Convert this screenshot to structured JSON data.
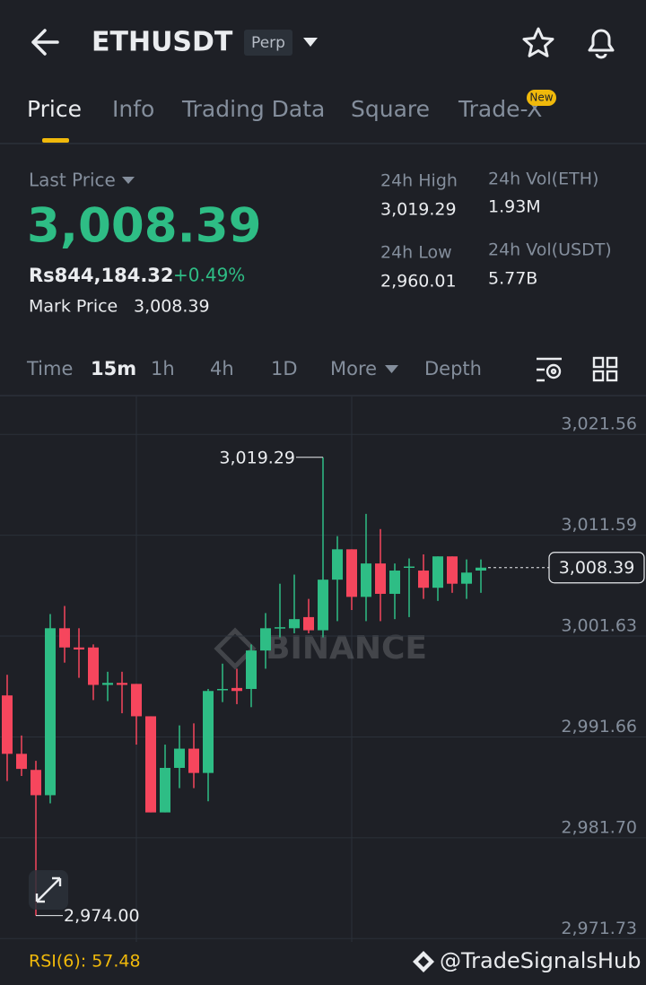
{
  "header": {
    "symbol": "ETHUSDT",
    "contract": "Perp"
  },
  "tabs": {
    "items": [
      "Price",
      "Info",
      "Trading Data",
      "Square",
      "Trade-X"
    ],
    "badge": "New"
  },
  "stats": {
    "last_price_label": "Last Price",
    "last_price": "3,008.39",
    "fiat_price": "Rs844,184.32",
    "change": "+0.49%",
    "mark_price_label": "Mark Price",
    "mark_price": "3,008.39",
    "high_label": "24h High",
    "high": "3,019.29",
    "low_label": "24h Low",
    "low": "2,960.01",
    "vol_eth_label": "24h Vol(ETH)",
    "vol_eth": "1.93M",
    "vol_usdt_label": "24h Vol(USDT)",
    "vol_usdt": "5.77B"
  },
  "intervals": [
    "Time",
    "15m",
    "1h",
    "4h",
    "1D",
    "More",
    "Depth"
  ],
  "chart_data": {
    "type": "candlestick",
    "open": [
      2995.76,
      2989.99,
      2988.4,
      2985.9,
      3002.4,
      3000.5,
      3000.5,
      2996.8,
      2997.0,
      2996.9,
      2993.7,
      2984.2,
      2988.6,
      2990.5,
      2988.1,
      2996.3,
      2996.5,
      2996.4,
      3000.2,
      3002.4,
      3002.4,
      3003.5,
      3002.2,
      3007.2,
      3010.2,
      3005.5,
      3008.8,
      3005.8,
      3008.4,
      3008.1,
      3006.4,
      3009.5,
      3006.8,
      3008.1
    ],
    "high": [
      2997.8,
      2991.8,
      2989.3,
      3003.8,
      3004.6,
      3002.4,
      3000.8,
      2998.1,
      2998.1,
      2996.9,
      2993.7,
      2990.9,
      2992.8,
      2993.0,
      2996.4,
      2998.9,
      2998.4,
      3000.8,
      3003.9,
      3006.8,
      3007.7,
      3005.3,
      3019.29,
      3011.5,
      3010.2,
      3013.7,
      3012.2,
      3008.8,
      3009.3,
      3009.7,
      3009.5,
      3009.5,
      3009.2,
      3009.2
    ],
    "low": [
      2987.3,
      2987.8,
      2974.0,
      2985.1,
      2999.0,
      2997.5,
      2995.3,
      2995.2,
      2994.0,
      2990.9,
      2984.2,
      2984.2,
      2986.6,
      2986.6,
      2985.3,
      2995.1,
      2994.9,
      2994.6,
      2998.4,
      3001.5,
      3001.9,
      3001.9,
      3001.5,
      3003.1,
      3004.2,
      3003.1,
      3003.1,
      3003.3,
      3003.5,
      3005.3,
      3005.1,
      3005.9,
      3005.3,
      3005.9
    ],
    "close": [
      2989.99,
      2988.5,
      2985.9,
      3002.4,
      3000.5,
      3000.3,
      2996.8,
      2997.0,
      2996.8,
      2993.7,
      2984.2,
      2988.6,
      2990.5,
      2988.1,
      2996.2,
      2996.4,
      2996.2,
      3000.2,
      3002.4,
      3002.5,
      3003.3,
      3002.2,
      3007.2,
      3010.2,
      3005.5,
      3008.8,
      3005.8,
      3008.1,
      3008.5,
      3006.4,
      3009.5,
      3006.8,
      3007.9,
      3008.39
    ],
    "up_color": "#2ebd85",
    "down_color": "#f6465d",
    "ylim": [
      2971.4,
      3025.3
    ],
    "yticks": [
      {
        "value": 3021.56,
        "label": "3,021.56"
      },
      {
        "value": 3011.59,
        "label": "3,011.59"
      },
      {
        "value": 3001.63,
        "label": "3,001.63"
      },
      {
        "value": 2991.66,
        "label": "2,991.66"
      },
      {
        "value": 2981.7,
        "label": "2,981.70"
      },
      {
        "value": 2971.73,
        "label": "2,971.73"
      }
    ],
    "grid": true,
    "max_label": {
      "value": 3019.29,
      "label": "3,019.29"
    },
    "min_label": {
      "value": 2974.0,
      "label": "2,974.00"
    },
    "last_label": {
      "value": 3008.39,
      "label": "3,008.39"
    }
  },
  "indicator": "RSI(6): 57.48",
  "logo_watermark": "BINANCE",
  "watermark": "@TradeSignalsHub"
}
